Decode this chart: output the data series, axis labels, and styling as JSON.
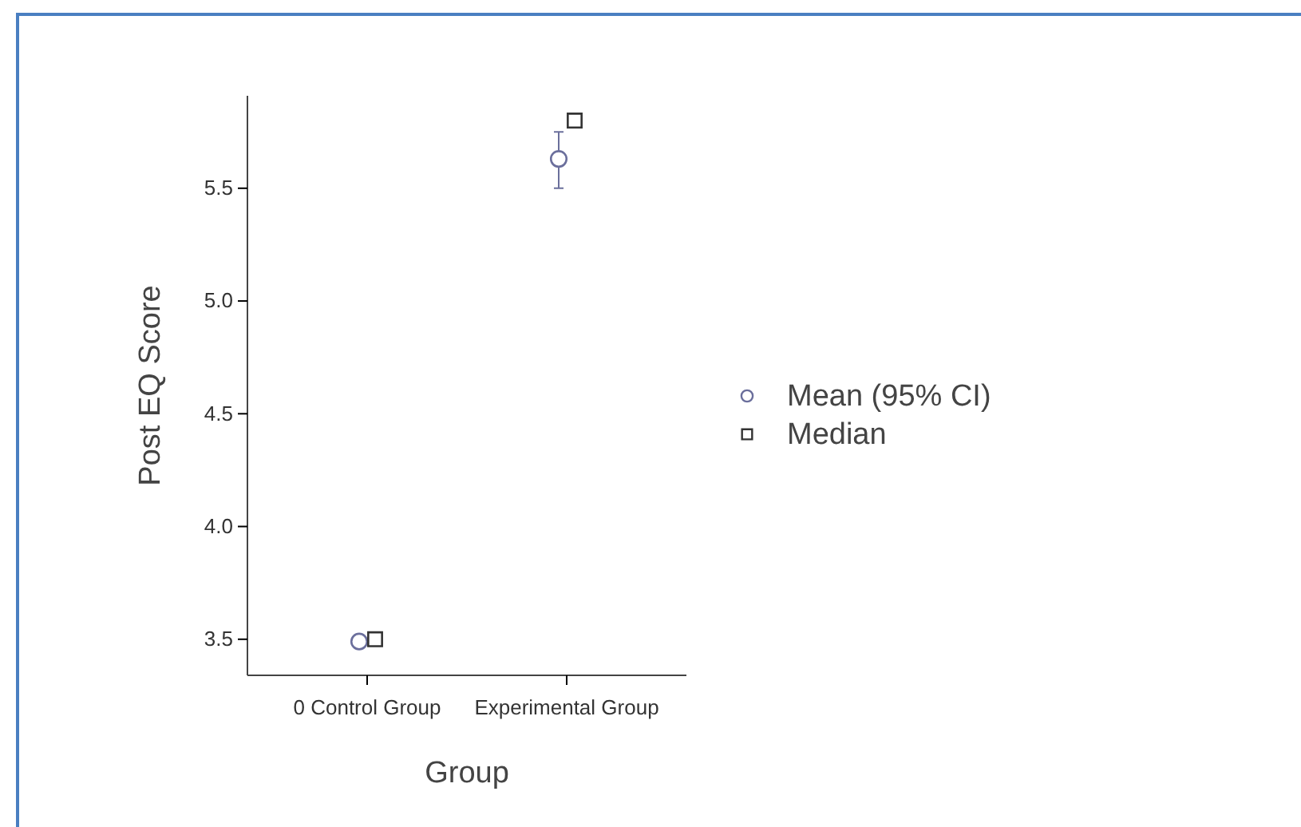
{
  "chart_data": {
    "type": "scatter",
    "xlabel": "Group",
    "ylabel": "Post EQ Score",
    "categories": [
      "0 Control Group",
      "Experimental Group"
    ],
    "ylim": [
      3.34,
      5.91
    ],
    "yticks": [
      3.5,
      {
        "value": 4,
        "label": "4.0"
      },
      4.5,
      {
        "value": 5,
        "label": "5.0"
      },
      5.5
    ],
    "grid": false,
    "legend": "right",
    "series": [
      {
        "name": "Mean (95% CI)",
        "color": "#6b6f9c",
        "marker": "circle",
        "values": [
          3.49,
          5.63
        ],
        "errors": [
          null,
          [
            5.5,
            5.75
          ]
        ]
      },
      {
        "name": "Median",
        "color": "#333333",
        "marker": "square",
        "values": [
          3.5,
          5.8
        ]
      }
    ]
  }
}
